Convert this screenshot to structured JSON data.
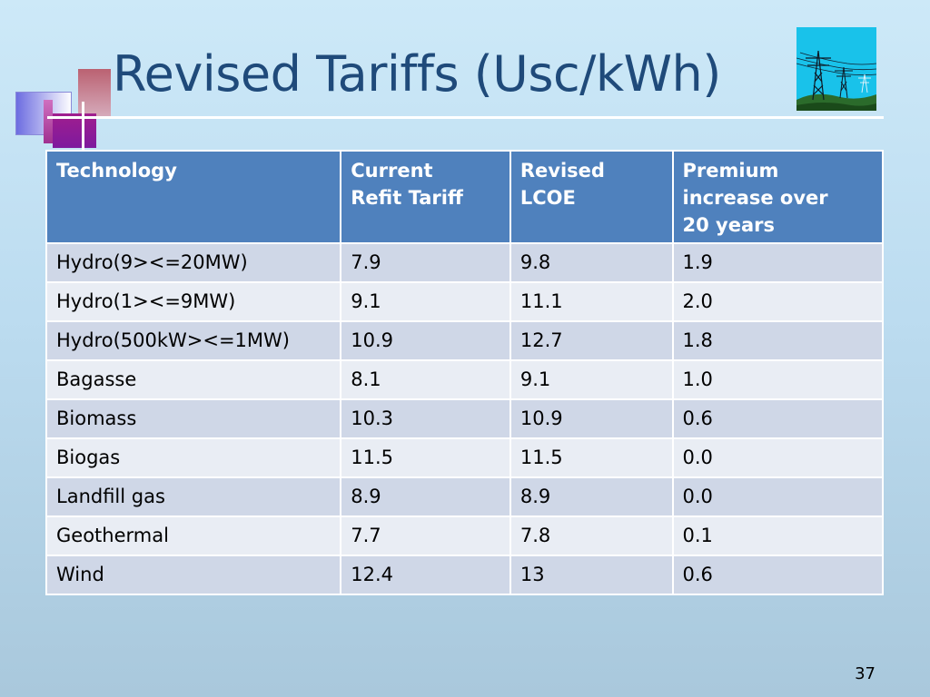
{
  "slide": {
    "title": "Revised Tariffs (Usc/kWh)",
    "page_number": "37"
  },
  "table": {
    "headers": [
      [
        "Technology"
      ],
      [
        "Current",
        "Refit Tariff"
      ],
      [
        "Revised",
        "LCOE"
      ],
      [
        "Premium",
        "increase over",
        "20 years"
      ]
    ],
    "rows": [
      [
        "Hydro(9><=20MW)",
        "7.9",
        "9.8",
        "1.9"
      ],
      [
        "Hydro(1><=9MW)",
        "9.1",
        "11.1",
        "2.0"
      ],
      [
        "Hydro(500kW><=1MW)",
        "10.9",
        "12.7",
        "1.8"
      ],
      [
        "Bagasse",
        "8.1",
        "9.1",
        "1.0"
      ],
      [
        "Biomass",
        "10.3",
        "10.9",
        "0.6"
      ],
      [
        "Biogas",
        "11.5",
        "11.5",
        "0.0"
      ],
      [
        "Landfill gas",
        "8.9",
        "8.9",
        "0.0"
      ],
      [
        "Geothermal",
        "7.7",
        "7.8",
        "0.1"
      ],
      [
        "Wind",
        "12.4",
        "13",
        "0.6"
      ]
    ]
  },
  "colors": {
    "title": "#1f4a7a",
    "header_bg": "#4f81bd",
    "row_odd": "#cfd7e7",
    "row_even": "#e9edf4",
    "pylon_sky": "#19c2ea"
  },
  "icons": {
    "decoration": "stacked-squares-decoration",
    "pylon_image": "power-pylons-icon"
  }
}
